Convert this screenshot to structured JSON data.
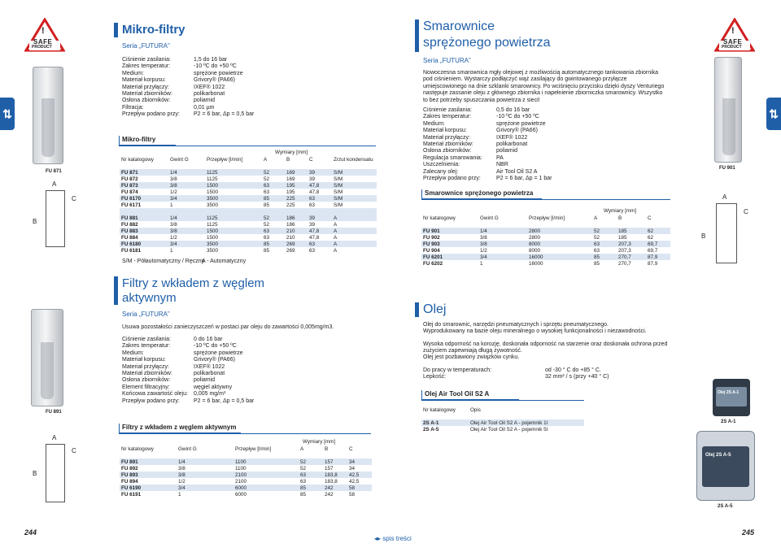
{
  "badge": {
    "warn": "!",
    "line1": "SAFE",
    "line2": "PRODUCT"
  },
  "left": {
    "title": "Mikro-filtry",
    "seria": "Seria „FUTURA”",
    "specs": [
      [
        "Ciśnienie zasilania:",
        "1,5 do 16 bar"
      ],
      [
        "Zakres temperatur:",
        "-10 ºC do +50 ºC"
      ],
      [
        "Medium:",
        "sprężone powietrze"
      ],
      [
        "Materiał korpusu:",
        "Grivory® (PA66)"
      ],
      [
        "Materiał przyłączy:",
        "IXEF® 1022"
      ],
      [
        "Materiał zbiorników:",
        "polikarbonat"
      ],
      [
        "Osłona zbiorników:",
        "poliamid"
      ],
      [
        "Filtracja:",
        "0,01 µm"
      ],
      [
        "Przepływ podano przy:",
        "P2 = 6 bar, Δp = 0,5 bar"
      ]
    ],
    "section": "Mikro-filtry",
    "dims_header": "Wymiary [mm]",
    "cols": [
      "Nr katalogowy",
      "Gwint G",
      "Przepływ [l/min]",
      "A",
      "B",
      "C",
      "Zrzut kondensatu"
    ],
    "rows1": [
      [
        "FU 871",
        "1/4",
        "1125",
        "52",
        "169",
        "39",
        "S/M"
      ],
      [
        "FU 872",
        "3/8",
        "1125",
        "52",
        "169",
        "39",
        "S/M"
      ],
      [
        "FU 873",
        "3/8",
        "1500",
        "63",
        "195",
        "47,8",
        "S/M"
      ],
      [
        "FU 874",
        "1/2",
        "1500",
        "63",
        "195",
        "47,8",
        "S/M"
      ],
      [
        "FU 6170",
        "3/4",
        "3500",
        "85",
        "225",
        "63",
        "S/M"
      ],
      [
        "FU 6171",
        "1",
        "3500",
        "85",
        "225",
        "63",
        "S/M"
      ]
    ],
    "rows2": [
      [
        "FU 881",
        "1/4",
        "1125",
        "52",
        "186",
        "39",
        "A"
      ],
      [
        "FU 882",
        "3/8",
        "1125",
        "52",
        "186",
        "39",
        "A"
      ],
      [
        "FU 883",
        "3/8",
        "1500",
        "63",
        "210",
        "47,8",
        "A"
      ],
      [
        "FU 884",
        "1/2",
        "1500",
        "63",
        "210",
        "47,8",
        "A"
      ],
      [
        "FU 6180",
        "3/4",
        "3500",
        "85",
        "269",
        "63",
        "A"
      ],
      [
        "FU 6181",
        "1",
        "3500",
        "85",
        "269",
        "63",
        "A"
      ]
    ],
    "legend1": "S/M - Półautomatyczny / Ręczny",
    "legend2": "A - Automatyczny",
    "title2a": "Filtry z wkładem z węglem",
    "title2b": "aktywnym",
    "seria2": "Seria „FUTURA”",
    "desc2": "Usuwa pozostałości zanieczyszczeń w postaci par oleju do zawartości 0,005mg/m3.",
    "specs2": [
      [
        "Ciśnienie zasilania:",
        "0 do 16 bar"
      ],
      [
        "Zakres temperatur:",
        "-10 ºC do +50 ºC"
      ],
      [
        "Medium:",
        "sprężone powietrze"
      ],
      [
        "Materiał korpusu:",
        "Grivory® (PA66)"
      ],
      [
        "Materiał przyłączy:",
        "IXEF® 1022"
      ],
      [
        "Materiał zbiorników:",
        "polikarbonat"
      ],
      [
        "Osłona zbiorników:",
        "poliamid"
      ],
      [
        "Element filtracyjny:",
        "węgiel aktywny"
      ],
      [
        "Końcowa zawartość oleju:",
        "0,005 mg/m³"
      ],
      [
        "Przepływ podano przy:",
        "P2 = 6 bar, Δp = 0,5 bar"
      ]
    ],
    "section2": "Filtry z wkładem z węglem aktywnym",
    "dims_header2": "Wymiary [mm]",
    "cols2": [
      "Nr katalogowy",
      "Gwint G",
      "Przepływ [l/min]",
      "A",
      "B",
      "C"
    ],
    "rows3": [
      [
        "FU 891",
        "1/4",
        "1100",
        "52",
        "157",
        "34"
      ],
      [
        "FU 892",
        "3/8",
        "1100",
        "52",
        "157",
        "34"
      ],
      [
        "FU 893",
        "3/8",
        "2100",
        "63",
        "183,8",
        "42,5"
      ],
      [
        "FU 894",
        "1/2",
        "2100",
        "63",
        "183,8",
        "42,5"
      ],
      [
        "FU 6190",
        "3/4",
        "6000",
        "85",
        "242",
        "58"
      ],
      [
        "FU 6191",
        "1",
        "6000",
        "85",
        "242",
        "58"
      ]
    ],
    "cap1": "FU 871",
    "cap2": "FU 891",
    "dimA": "A",
    "dimB": "B",
    "dimC": "C",
    "page": "244"
  },
  "right": {
    "title1": "Smarownice",
    "title2": "sprężonego powietrza",
    "seria": "Seria „FUTURA”",
    "desc": "Nowoczesna smarownica mgły olejowej z możliwością automatycznego tankowania zbiornika pod ciśnieniem. Wystarczy podłączyć wąż zasilający do gwintowanego przyłącze umiejscowionego na dnie szklanki smarownicy. Po wciśnięciu przycisku dzięki dyszy Venturiego następuje zassanie oleju z głównego zbiornika i napełnienie zbiorniczka smarownicy. Wszystko to bez potrzeby spuszczania powietrza z sieci!",
    "specs": [
      [
        "Ciśnienie zasilania:",
        "0,5 do 16 bar"
      ],
      [
        "Zakres temperatur:",
        "-10 ºC do +50 ºC"
      ],
      [
        "Medium:",
        "sprężone powietrze"
      ],
      [
        "Materiał korpusu:",
        "Grivory® (PA66)"
      ],
      [
        "Materiał przyłączy:",
        "IXEF® 1022"
      ],
      [
        "Materiał zbiorników:",
        "polikarbonat"
      ],
      [
        "Osłona zbiorników:",
        "poliamid"
      ],
      [
        "Regulacja smarowania:",
        "PA"
      ],
      [
        "Uszczelnienia:",
        "NBR"
      ],
      [
        "Zalecany olej:",
        "Air Tool Oil S2 A"
      ],
      [
        "Przepływ podano przy:",
        "P2 = 6 bar, Δp = 1 bar"
      ]
    ],
    "section": "Smarownice sprężonego powietrza",
    "dims_header": "Wymiary [mm]",
    "cols": [
      "Nr katalogowy",
      "Gwint G",
      "Przepływ [l/min]",
      "A",
      "B",
      "C"
    ],
    "rows": [
      [
        "FU 901",
        "1/4",
        "2800",
        "52",
        "185",
        "62"
      ],
      [
        "FU 902",
        "3/8",
        "2800",
        "52",
        "185",
        "62"
      ],
      [
        "FU 903",
        "3/8",
        "8000",
        "63",
        "207,3",
        "69,7"
      ],
      [
        "FU 904",
        "1/2",
        "8000",
        "63",
        "207,3",
        "69,7"
      ],
      [
        "FU 6201",
        "3/4",
        "16000",
        "85",
        "270,7",
        "87,9"
      ],
      [
        "FU 6202",
        "1",
        "16000",
        "85",
        "270,7",
        "87,9"
      ]
    ],
    "cap1": "FU 901",
    "dimA": "A",
    "dimB": "B",
    "dimC": "C",
    "olej_title": "Olej",
    "olej_p1a": "Olej do smarownic, narzędzi pneumatycznych i sprzętu pneumatycznego.",
    "olej_p1b": "Wyprodukowany na bazie oleju mineralnego o wysokiej funkcjonalności i niezawodności.",
    "olej_p2a": "Wysoka odporność na korozję, doskonała odporność na starzenie oraz doskonała ochrona przed",
    "olej_p2b": "zużyciem zapewniają długą żywotność.",
    "olej_p2c": "Olej jest pozbawiony związków cynku.",
    "olej_specs": [
      [
        "Do pracy w temperaturach:",
        "od -30 ° C do +85 ° C."
      ],
      [
        "Lepkość:",
        "32 mm² / s  (przy +40 ° C)"
      ]
    ],
    "olej_section": "Olej Air Tool Oil S2 A",
    "olej_cols": [
      "Nr katalogowy",
      "Opis"
    ],
    "olej_rows": [
      [
        "2S A-1",
        "Olej Air Tool Oil S2 A - pojemnik 1l"
      ],
      [
        "2S A-5",
        "Olej Air Tool Oil S2 A - pojemnik 5l"
      ]
    ],
    "can1_label": "Olej 2S A-1",
    "can2_label": "Olej 2S A-5",
    "cap_can1": "2S A-1",
    "cap_can2": "2S A-5",
    "page": "245"
  },
  "footer": {
    "spis": "spis treści"
  },
  "side_icon": "⇅"
}
